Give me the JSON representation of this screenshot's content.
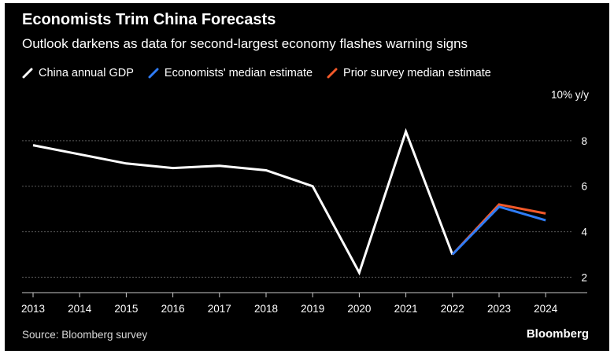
{
  "title": "Economists Trim China Forecasts",
  "subtitle": "Outlook darkens as data for second-largest economy flashes warning signs",
  "source": "Source: Bloomberg survey",
  "brand": "Bloomberg",
  "colors": {
    "background": "#000000",
    "gdp": "#ffffff",
    "median": "#2f7cf6",
    "prior": "#f2592a",
    "grid": "#5a5a5a",
    "axis": "#c8c8c8"
  },
  "legend": [
    {
      "label": "China annual GDP",
      "color": "#ffffff"
    },
    {
      "label": "Economists' median estimate",
      "color": "#2f7cf6"
    },
    {
      "label": "Prior survey median estimate",
      "color": "#f2592a"
    }
  ],
  "chart_data": {
    "type": "line",
    "ylabel": "10% y/y",
    "ylim": [
      1.6,
      10
    ],
    "yticks": [
      2,
      4,
      6,
      8
    ],
    "grid": true,
    "legend_position": "top-left",
    "x": [
      "2013",
      "2014",
      "2015",
      "2016",
      "2017",
      "2018",
      "2019",
      "2020",
      "2021",
      "2022",
      "2023",
      "2024"
    ],
    "series": [
      {
        "name": "China annual GDP",
        "color": "#ffffff",
        "x": [
          "2013",
          "2014",
          "2015",
          "2016",
          "2017",
          "2018",
          "2019",
          "2020",
          "2021",
          "2022"
        ],
        "values": [
          7.8,
          7.4,
          7.0,
          6.8,
          6.9,
          6.7,
          6.0,
          2.2,
          8.4,
          3.0
        ]
      },
      {
        "name": "Prior survey median estimate",
        "color": "#f2592a",
        "x": [
          "2022",
          "2023",
          "2024"
        ],
        "values": [
          3.0,
          5.2,
          4.8
        ]
      },
      {
        "name": "Economists' median estimate",
        "color": "#2f7cf6",
        "x": [
          "2022",
          "2023",
          "2024"
        ],
        "values": [
          3.0,
          5.1,
          4.5
        ]
      }
    ]
  }
}
